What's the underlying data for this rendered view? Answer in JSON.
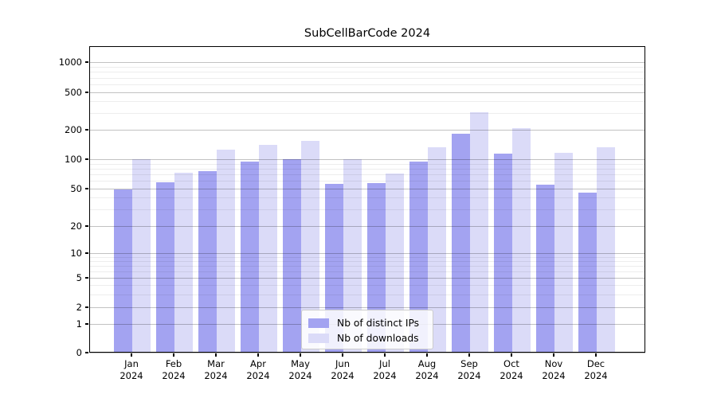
{
  "title": "SubCellBarCode 2024",
  "colors": {
    "distinct_ips": "#a3a3f1",
    "downloads": "#dbdbf8",
    "axis": "#000000",
    "grid_major": "rgba(0,0,0,0.24)",
    "grid_minor": "rgba(0,0,0,0.07)"
  },
  "legend": {
    "items": [
      {
        "label": "Nb of distinct IPs",
        "color_key": "distinct_ips"
      },
      {
        "label": "Nb of downloads",
        "color_key": "downloads"
      }
    ]
  },
  "chart_data": {
    "type": "bar",
    "title": "SubCellBarCode 2024",
    "categories": [
      "Jan",
      "Feb",
      "Mar",
      "Apr",
      "May",
      "Jun",
      "Jul",
      "Aug",
      "Sep",
      "Oct",
      "Nov",
      "Dec"
    ],
    "category_year": "2024",
    "series": [
      {
        "name": "Nb of distinct IPs",
        "color_key": "distinct_ips",
        "values": [
          49,
          58,
          75,
          95,
          100,
          56,
          57,
          95,
          182,
          114,
          55,
          45
        ]
      },
      {
        "name": "Nb of downloads",
        "color_key": "downloads",
        "values": [
          100,
          73,
          125,
          140,
          155,
          100,
          72,
          133,
          310,
          210,
          116,
          133
        ]
      }
    ],
    "xlabel": "",
    "ylabel": "",
    "yscale": "symlog",
    "y_ticks": [
      0,
      1,
      2,
      5,
      10,
      20,
      50,
      100,
      200,
      500,
      1000
    ],
    "y_minor_ticks": [
      3,
      4,
      6,
      7,
      8,
      9,
      30,
      40,
      60,
      70,
      80,
      90,
      300,
      400,
      600,
      700,
      800,
      900
    ],
    "ylim": [
      0,
      1500
    ],
    "grid": "horizontal major+minor, drawn over bars",
    "legend_position": "lower center"
  }
}
